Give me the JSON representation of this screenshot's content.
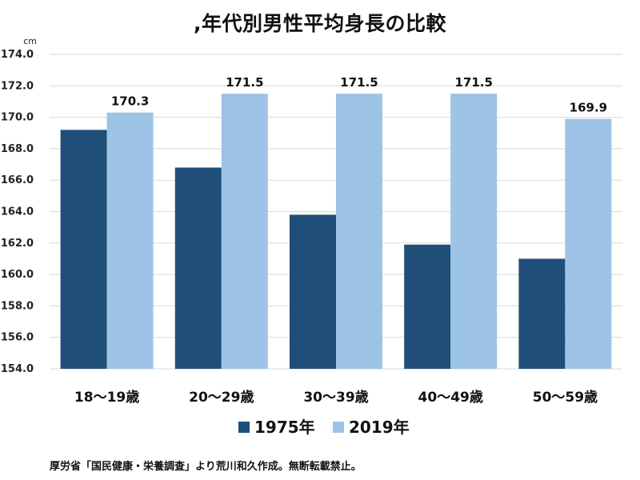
{
  "title": ",年代別男性平均身長の比較",
  "source_note": "厚労省「国民健康・栄養調査」より荒川和久作成。無断転載禁止。",
  "colors": {
    "s1975": "#1f4e79",
    "s2019": "#9dc3e6",
    "grid": "#d9d9d9"
  },
  "chart_data": {
    "type": "bar",
    "title": ",年代別男性平均身長の比較",
    "ylabel": "cm",
    "xlabel": "",
    "ylim": [
      154.0,
      174.0
    ],
    "ytick_step": 2.0,
    "grid": true,
    "legend_position": "bottom",
    "categories": [
      "18～19歳",
      "20～29歳",
      "30～39歳",
      "40～49歳",
      "50～59歳"
    ],
    "series": [
      {
        "name": "1975年",
        "values": [
          169.2,
          166.8,
          163.8,
          161.9,
          161.0
        ],
        "show_labels": false
      },
      {
        "name": "2019年",
        "values": [
          170.3,
          171.5,
          171.5,
          171.5,
          169.9
        ],
        "show_labels": true
      }
    ]
  }
}
